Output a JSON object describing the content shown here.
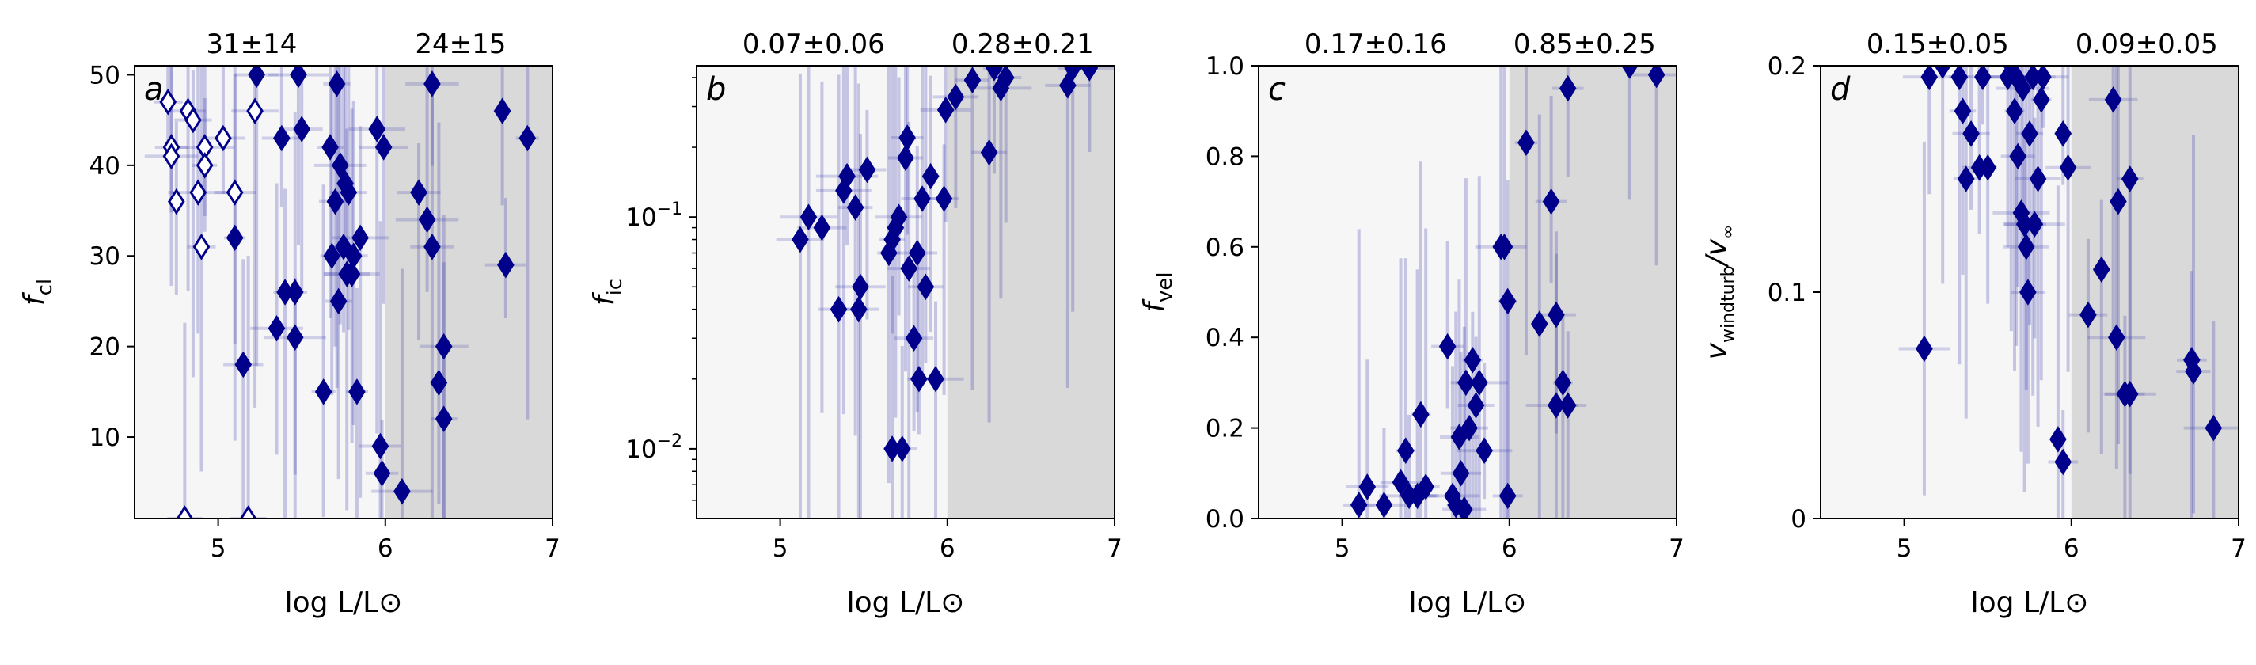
{
  "chart_data": [
    {
      "type": "scatter",
      "panel_letter": "a",
      "ylabel": "f",
      "ylabel_sub": "cl",
      "xlabel": "log L/L⊙",
      "xlim": [
        4.5,
        7
      ],
      "ylim": [
        1,
        51
      ],
      "yscale": "linear",
      "xticks": [
        {
          "v": 5,
          "label": "5"
        },
        {
          "v": 6,
          "label": "6"
        },
        {
          "v": 7,
          "label": "7"
        }
      ],
      "yticks": [
        {
          "v": 10,
          "label": "10"
        },
        {
          "v": 20,
          "label": "20"
        },
        {
          "v": 30,
          "label": "30"
        },
        {
          "v": 40,
          "label": "40"
        },
        {
          "v": 50,
          "label": "50"
        }
      ],
      "shade_split_x": 6.0,
      "top_labels": [
        "31±14",
        "24±15"
      ],
      "filled_points": [
        {
          "x": 5.1,
          "y": 32
        },
        {
          "x": 5.15,
          "y": 18
        },
        {
          "x": 5.23,
          "y": 50
        },
        {
          "x": 5.35,
          "y": 22
        },
        {
          "x": 5.38,
          "y": 43
        },
        {
          "x": 5.4,
          "y": 26
        },
        {
          "x": 5.46,
          "y": 26
        },
        {
          "x": 5.46,
          "y": 21
        },
        {
          "x": 5.48,
          "y": 50
        },
        {
          "x": 5.5,
          "y": 44
        },
        {
          "x": 5.63,
          "y": 15
        },
        {
          "x": 5.67,
          "y": 42
        },
        {
          "x": 5.68,
          "y": 30
        },
        {
          "x": 5.7,
          "y": 36
        },
        {
          "x": 5.71,
          "y": 49
        },
        {
          "x": 5.72,
          "y": 25
        },
        {
          "x": 5.73,
          "y": 40
        },
        {
          "x": 5.75,
          "y": 31
        },
        {
          "x": 5.76,
          "y": 38
        },
        {
          "x": 5.77,
          "y": 28
        },
        {
          "x": 5.78,
          "y": 37
        },
        {
          "x": 5.8,
          "y": 28
        },
        {
          "x": 5.81,
          "y": 30
        },
        {
          "x": 5.83,
          "y": 15
        },
        {
          "x": 5.85,
          "y": 32
        },
        {
          "x": 5.95,
          "y": 44
        },
        {
          "x": 5.97,
          "y": 9
        },
        {
          "x": 5.98,
          "y": 6
        },
        {
          "x": 5.99,
          "y": 42
        },
        {
          "x": 6.1,
          "y": 4
        },
        {
          "x": 6.2,
          "y": 37
        },
        {
          "x": 6.25,
          "y": 34
        },
        {
          "x": 6.28,
          "y": 31
        },
        {
          "x": 6.28,
          "y": 49
        },
        {
          "x": 6.32,
          "y": 16
        },
        {
          "x": 6.35,
          "y": 20
        },
        {
          "x": 6.35,
          "y": 12
        },
        {
          "x": 6.7,
          "y": 46
        },
        {
          "x": 6.72,
          "y": 29
        },
        {
          "x": 6.85,
          "y": 43
        }
      ],
      "open_points": [
        {
          "x": 4.7,
          "y": 47
        },
        {
          "x": 4.72,
          "y": 42
        },
        {
          "x": 4.72,
          "y": 41
        },
        {
          "x": 4.75,
          "y": 36
        },
        {
          "x": 4.8,
          "y": 1
        },
        {
          "x": 4.82,
          "y": 46
        },
        {
          "x": 4.85,
          "y": 45
        },
        {
          "x": 4.88,
          "y": 37
        },
        {
          "x": 4.9,
          "y": 31
        },
        {
          "x": 4.92,
          "y": 42
        },
        {
          "x": 4.92,
          "y": 40
        },
        {
          "x": 5.03,
          "y": 43
        },
        {
          "x": 5.1,
          "y": 37
        },
        {
          "x": 5.18,
          "y": 1
        },
        {
          "x": 5.22,
          "y": 46
        }
      ]
    },
    {
      "type": "scatter",
      "panel_letter": "b",
      "ylabel": "f",
      "ylabel_sub": "ic",
      "xlabel": "log L/L⊙",
      "xlim": [
        4.5,
        7
      ],
      "ylim": [
        0.005,
        0.45
      ],
      "yscale": "log",
      "xticks": [
        {
          "v": 5,
          "label": "5"
        },
        {
          "v": 6,
          "label": "6"
        },
        {
          "v": 7,
          "label": "7"
        }
      ],
      "yticks": [
        {
          "v": 0.01,
          "label": "10",
          "exp": "−2"
        },
        {
          "v": 0.1,
          "label": "10",
          "exp": "−1"
        }
      ],
      "shade_split_x": 6.0,
      "top_labels": [
        "0.07±0.06",
        "0.28±0.21"
      ],
      "filled_points": [
        {
          "x": 5.12,
          "y": 0.08
        },
        {
          "x": 5.17,
          "y": 0.1
        },
        {
          "x": 5.25,
          "y": 0.09
        },
        {
          "x": 5.35,
          "y": 0.04
        },
        {
          "x": 5.38,
          "y": 0.13
        },
        {
          "x": 5.4,
          "y": 0.15
        },
        {
          "x": 5.45,
          "y": 0.11
        },
        {
          "x": 5.47,
          "y": 0.04
        },
        {
          "x": 5.48,
          "y": 0.05
        },
        {
          "x": 5.52,
          "y": 0.16
        },
        {
          "x": 5.65,
          "y": 0.07
        },
        {
          "x": 5.67,
          "y": 0.08
        },
        {
          "x": 5.67,
          "y": 0.01
        },
        {
          "x": 5.69,
          "y": 0.09
        },
        {
          "x": 5.71,
          "y": 0.1
        },
        {
          "x": 5.73,
          "y": 0.01
        },
        {
          "x": 5.75,
          "y": 0.18
        },
        {
          "x": 5.76,
          "y": 0.22
        },
        {
          "x": 5.77,
          "y": 0.06
        },
        {
          "x": 5.8,
          "y": 0.03
        },
        {
          "x": 5.82,
          "y": 0.07
        },
        {
          "x": 5.83,
          "y": 0.02
        },
        {
          "x": 5.85,
          "y": 0.12
        },
        {
          "x": 5.87,
          "y": 0.05
        },
        {
          "x": 5.9,
          "y": 0.15
        },
        {
          "x": 5.93,
          "y": 0.02
        },
        {
          "x": 5.98,
          "y": 0.12
        },
        {
          "x": 5.99,
          "y": 0.29
        },
        {
          "x": 6.05,
          "y": 0.33
        },
        {
          "x": 6.15,
          "y": 0.39
        },
        {
          "x": 6.25,
          "y": 0.19
        },
        {
          "x": 6.28,
          "y": 0.44
        },
        {
          "x": 6.32,
          "y": 0.36
        },
        {
          "x": 6.35,
          "y": 0.4
        },
        {
          "x": 6.72,
          "y": 0.37
        },
        {
          "x": 6.75,
          "y": 0.44
        },
        {
          "x": 6.85,
          "y": 0.44
        }
      ],
      "open_points": []
    },
    {
      "type": "scatter",
      "panel_letter": "c",
      "ylabel": "f",
      "ylabel_sub": "vel",
      "xlabel": "log L/L⊙",
      "xlim": [
        4.5,
        7
      ],
      "ylim": [
        0,
        1.0
      ],
      "yscale": "linear",
      "xticks": [
        {
          "v": 5,
          "label": "5"
        },
        {
          "v": 6,
          "label": "6"
        },
        {
          "v": 7,
          "label": "7"
        }
      ],
      "yticks": [
        {
          "v": 0,
          "label": "0.0"
        },
        {
          "v": 0.2,
          "label": "0.2"
        },
        {
          "v": 0.4,
          "label": "0.4"
        },
        {
          "v": 0.6,
          "label": "0.6"
        },
        {
          "v": 0.8,
          "label": "0.8"
        },
        {
          "v": 1.0,
          "label": "1.0"
        }
      ],
      "shade_split_x": 6.0,
      "top_labels": [
        "0.17±0.16",
        "0.85±0.25"
      ],
      "filled_points": [
        {
          "x": 5.1,
          "y": 0.03
        },
        {
          "x": 5.15,
          "y": 0.07
        },
        {
          "x": 5.25,
          "y": 0.03
        },
        {
          "x": 5.35,
          "y": 0.08
        },
        {
          "x": 5.38,
          "y": 0.15
        },
        {
          "x": 5.4,
          "y": 0.05
        },
        {
          "x": 5.45,
          "y": 0.05
        },
        {
          "x": 5.47,
          "y": 0.23
        },
        {
          "x": 5.5,
          "y": 0.07
        },
        {
          "x": 5.63,
          "y": 0.38
        },
        {
          "x": 5.66,
          "y": 0.05
        },
        {
          "x": 5.68,
          "y": 0.03
        },
        {
          "x": 5.7,
          "y": 0.18
        },
        {
          "x": 5.71,
          "y": 0.1
        },
        {
          "x": 5.73,
          "y": 0.02
        },
        {
          "x": 5.74,
          "y": 0.3
        },
        {
          "x": 5.76,
          "y": 0.2
        },
        {
          "x": 5.78,
          "y": 0.35
        },
        {
          "x": 5.8,
          "y": 0.25
        },
        {
          "x": 5.82,
          "y": 0.3
        },
        {
          "x": 5.85,
          "y": 0.15
        },
        {
          "x": 5.95,
          "y": 0.6
        },
        {
          "x": 5.97,
          "y": 0.6
        },
        {
          "x": 5.99,
          "y": 0.48
        },
        {
          "x": 5.99,
          "y": 0.05
        },
        {
          "x": 6.1,
          "y": 0.83
        },
        {
          "x": 6.18,
          "y": 0.43
        },
        {
          "x": 6.25,
          "y": 0.7
        },
        {
          "x": 6.28,
          "y": 0.45
        },
        {
          "x": 6.28,
          "y": 0.25
        },
        {
          "x": 6.32,
          "y": 0.3
        },
        {
          "x": 6.35,
          "y": 0.95
        },
        {
          "x": 6.35,
          "y": 0.25
        },
        {
          "x": 6.72,
          "y": 1.0
        },
        {
          "x": 6.88,
          "y": 0.98
        }
      ],
      "open_points": []
    },
    {
      "type": "scatter",
      "panel_letter": "d",
      "ylabel": "v",
      "ylabel_sub": "windturb",
      "ylabel_mid": "/v",
      "ylabel_sub2": "∞",
      "xlabel": "log L/L⊙",
      "xlim": [
        4.5,
        7
      ],
      "ylim": [
        0,
        0.2
      ],
      "yscale": "linear",
      "xticks": [
        {
          "v": 5,
          "label": "5"
        },
        {
          "v": 6,
          "label": "6"
        },
        {
          "v": 7,
          "label": "7"
        }
      ],
      "yticks": [
        {
          "v": 0,
          "label": "0"
        },
        {
          "v": 0.1,
          "label": "0.1"
        },
        {
          "v": 0.2,
          "label": "0.2"
        }
      ],
      "shade_split_x": 6.0,
      "top_labels": [
        "0.15±0.05",
        "0.09±0.05"
      ],
      "filled_points": [
        {
          "x": 5.12,
          "y": 0.075
        },
        {
          "x": 5.15,
          "y": 0.195
        },
        {
          "x": 5.23,
          "y": 0.2
        },
        {
          "x": 5.33,
          "y": 0.195
        },
        {
          "x": 5.35,
          "y": 0.18
        },
        {
          "x": 5.37,
          "y": 0.15
        },
        {
          "x": 5.4,
          "y": 0.17
        },
        {
          "x": 5.45,
          "y": 0.155
        },
        {
          "x": 5.47,
          "y": 0.195
        },
        {
          "x": 5.5,
          "y": 0.155
        },
        {
          "x": 5.62,
          "y": 0.195
        },
        {
          "x": 5.64,
          "y": 0.2
        },
        {
          "x": 5.66,
          "y": 0.18
        },
        {
          "x": 5.67,
          "y": 0.195
        },
        {
          "x": 5.68,
          "y": 0.16
        },
        {
          "x": 5.7,
          "y": 0.135
        },
        {
          "x": 5.71,
          "y": 0.19
        },
        {
          "x": 5.72,
          "y": 0.13
        },
        {
          "x": 5.73,
          "y": 0.12
        },
        {
          "x": 5.74,
          "y": 0.1
        },
        {
          "x": 5.75,
          "y": 0.17
        },
        {
          "x": 5.77,
          "y": 0.195
        },
        {
          "x": 5.78,
          "y": 0.13
        },
        {
          "x": 5.8,
          "y": 0.15
        },
        {
          "x": 5.82,
          "y": 0.185
        },
        {
          "x": 5.83,
          "y": 0.195
        },
        {
          "x": 5.92,
          "y": 0.035
        },
        {
          "x": 5.95,
          "y": 0.025
        },
        {
          "x": 5.95,
          "y": 0.17
        },
        {
          "x": 5.98,
          "y": 0.155
        },
        {
          "x": 6.1,
          "y": 0.09
        },
        {
          "x": 6.18,
          "y": 0.11
        },
        {
          "x": 6.25,
          "y": 0.185
        },
        {
          "x": 6.27,
          "y": 0.08
        },
        {
          "x": 6.28,
          "y": 0.14
        },
        {
          "x": 6.32,
          "y": 0.055
        },
        {
          "x": 6.35,
          "y": 0.055
        },
        {
          "x": 6.35,
          "y": 0.15
        },
        {
          "x": 6.72,
          "y": 0.07
        },
        {
          "x": 6.73,
          "y": 0.065
        },
        {
          "x": 6.85,
          "y": 0.04
        }
      ],
      "open_points": []
    }
  ],
  "colors": {
    "marker": "#00008b",
    "errorbar": "#3333aa",
    "shade_left": "#f6f6f6",
    "shade_right": "#d9d9d9"
  }
}
